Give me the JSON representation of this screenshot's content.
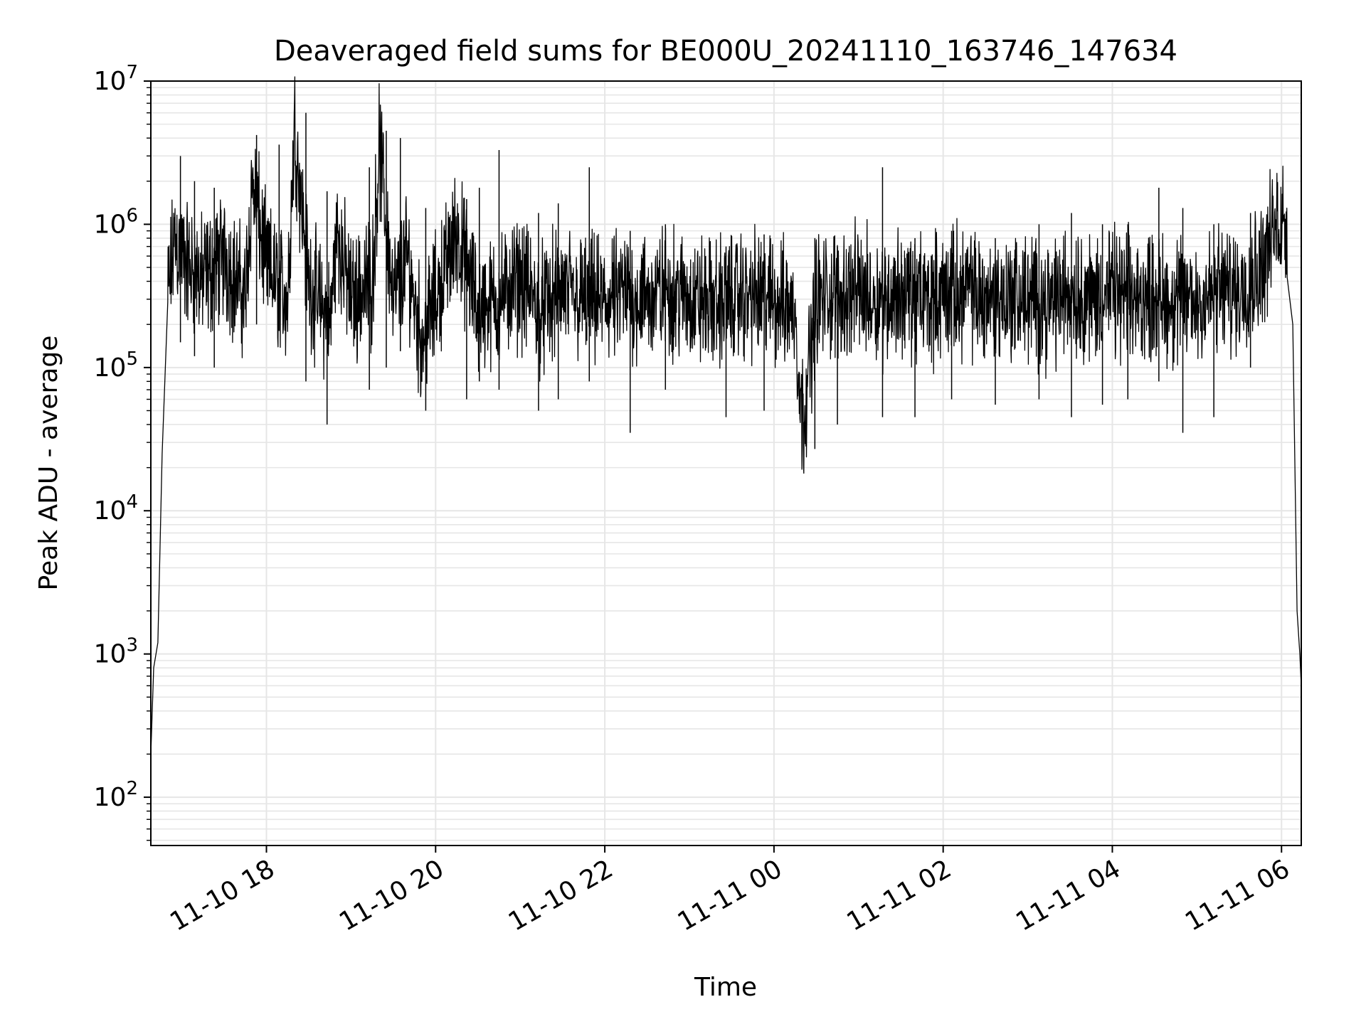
{
  "chart_data": {
    "type": "line",
    "title": "Deaveraged field sums for BE000U_20241110_163746_147634",
    "xlabel": "Time",
    "ylabel": "Peak ADU - average",
    "yscale": "log",
    "ylim": [
      46,
      10000000
    ],
    "xlim": [
      "2024-11-10 16:38",
      "2024-11-11 06:14"
    ],
    "grid": true,
    "line_color": "#000000",
    "grid_color": "#e6e6e6",
    "x_ticks": [
      {
        "value": "2024-11-10 18:00",
        "label": "11-10 18"
      },
      {
        "value": "2024-11-10 20:00",
        "label": "11-10 20"
      },
      {
        "value": "2024-11-10 22:00",
        "label": "11-10 22"
      },
      {
        "value": "2024-11-11 00:00",
        "label": "11-11 00"
      },
      {
        "value": "2024-11-11 02:00",
        "label": "11-11 02"
      },
      {
        "value": "2024-11-11 04:00",
        "label": "11-11 04"
      },
      {
        "value": "2024-11-11 06:00",
        "label": "11-11 06"
      }
    ],
    "y_ticks": [
      {
        "value": 100,
        "base": "10",
        "exp": "2"
      },
      {
        "value": 1000,
        "base": "10",
        "exp": "3"
      },
      {
        "value": 10000,
        "base": "10",
        "exp": "4"
      },
      {
        "value": 100000,
        "base": "10",
        "exp": "5"
      },
      {
        "value": 1000000,
        "base": "10",
        "exp": "6"
      },
      {
        "value": 10000000,
        "base": "10",
        "exp": "7"
      }
    ],
    "series": [
      {
        "x": [
          "2024-11-10 16:38",
          "2024-11-10 16:40",
          "2024-11-10 16:43",
          "2024-11-10 16:46",
          "2024-11-10 16:50",
          "2024-11-10 16:55",
          "2024-11-10 17:00",
          "2024-11-10 17:05",
          "2024-11-10 17:15",
          "2024-11-10 17:30",
          "2024-11-10 17:45",
          "2024-11-10 17:50",
          "2024-11-10 18:00",
          "2024-11-10 18:15",
          "2024-11-10 18:20",
          "2024-11-10 18:30",
          "2024-11-10 18:45",
          "2024-11-10 18:50",
          "2024-11-10 19:00",
          "2024-11-10 19:15",
          "2024-11-10 19:20",
          "2024-11-10 19:30",
          "2024-11-10 19:40",
          "2024-11-10 19:50",
          "2024-11-10 20:00",
          "2024-11-10 20:15",
          "2024-11-10 20:30",
          "2024-11-10 20:45",
          "2024-11-10 21:00",
          "2024-11-10 21:15",
          "2024-11-10 21:30",
          "2024-11-10 21:40",
          "2024-11-10 22:00",
          "2024-11-10 22:15",
          "2024-11-10 22:30",
          "2024-11-10 22:45",
          "2024-11-10 23:00",
          "2024-11-10 23:15",
          "2024-11-10 23:30",
          "2024-11-10 23:45",
          "2024-11-11 00:00",
          "2024-11-11 00:15",
          "2024-11-11 00:20",
          "2024-11-11 00:30",
          "2024-11-11 00:45",
          "2024-11-11 01:00",
          "2024-11-11 01:15",
          "2024-11-11 01:30",
          "2024-11-11 01:45",
          "2024-11-11 02:00",
          "2024-11-11 02:15",
          "2024-11-11 02:30",
          "2024-11-11 02:45",
          "2024-11-11 03:00",
          "2024-11-11 03:15",
          "2024-11-11 03:30",
          "2024-11-11 03:45",
          "2024-11-11 04:00",
          "2024-11-11 04:15",
          "2024-11-11 04:30",
          "2024-11-11 04:45",
          "2024-11-11 05:00",
          "2024-11-11 05:15",
          "2024-11-11 05:30",
          "2024-11-11 05:45",
          "2024-11-11 05:55",
          "2024-11-11 06:00",
          "2024-11-11 06:04",
          "2024-11-11 06:08",
          "2024-11-11 06:11",
          "2024-11-11 06:13",
          "2024-11-11 06:14"
        ],
        "y": [
          200,
          800,
          1200,
          25000,
          300000,
          800000,
          600000,
          500000,
          400000,
          600000,
          300000,
          2000000,
          500000,
          300000,
          5000000,
          400000,
          200000,
          900000,
          300000,
          400000,
          3500000,
          300000,
          600000,
          150000,
          300000,
          900000,
          250000,
          300000,
          400000,
          250000,
          350000,
          300000,
          280000,
          320000,
          300000,
          350000,
          300000,
          280000,
          300000,
          320000,
          300000,
          250000,
          40000,
          300000,
          320000,
          350000,
          300000,
          330000,
          300000,
          320000,
          350000,
          300000,
          310000,
          300000,
          280000,
          350000,
          300000,
          330000,
          300000,
          320000,
          280000,
          300000,
          330000,
          350000,
          500000,
          900000,
          1100000,
          1000000,
          200000,
          2000,
          1000,
          600
        ]
      }
    ],
    "spikes": [
      {
        "x": "2024-11-10 16:59",
        "high": 3000000,
        "low": 150000
      },
      {
        "x": "2024-11-10 17:09",
        "high": 2000000,
        "low": 120000
      },
      {
        "x": "2024-11-10 17:23",
        "high": 1800000,
        "low": 100000
      },
      {
        "x": "2024-11-10 17:53",
        "high": 4200000,
        "low": 200000
      },
      {
        "x": "2024-11-10 18:09",
        "high": 3600000,
        "low": 180000
      },
      {
        "x": "2024-11-10 18:28",
        "high": 6000000,
        "low": 80000
      },
      {
        "x": "2024-11-10 18:43",
        "high": 1700000,
        "low": 40000
      },
      {
        "x": "2024-11-10 19:13",
        "high": 2500000,
        "low": 70000
      },
      {
        "x": "2024-11-10 19:25",
        "high": 4500000,
        "low": 100000
      },
      {
        "x": "2024-11-10 19:35",
        "high": 4000000,
        "low": 130000
      },
      {
        "x": "2024-11-10 19:53",
        "high": 1300000,
        "low": 50000
      },
      {
        "x": "2024-11-10 20:22",
        "high": 1500000,
        "low": 60000
      },
      {
        "x": "2024-11-10 20:31",
        "high": 1800000,
        "low": 80000
      },
      {
        "x": "2024-11-10 20:45",
        "high": 3300000,
        "low": 70000
      },
      {
        "x": "2024-11-10 21:13",
        "high": 1200000,
        "low": 50000
      },
      {
        "x": "2024-11-10 21:27",
        "high": 1400000,
        "low": 60000
      },
      {
        "x": "2024-11-10 21:49",
        "high": 2500000,
        "low": 80000
      },
      {
        "x": "2024-11-10 22:18",
        "high": 900000,
        "low": 35000
      },
      {
        "x": "2024-11-10 22:43",
        "high": 1000000,
        "low": 70000
      },
      {
        "x": "2024-11-10 23:26",
        "high": 700000,
        "low": 45000
      },
      {
        "x": "2024-11-10 23:53",
        "high": 850000,
        "low": 50000
      },
      {
        "x": "2024-11-11 00:29",
        "high": 800000,
        "low": 27000
      },
      {
        "x": "2024-11-11 00:45",
        "high": 700000,
        "low": 40000
      },
      {
        "x": "2024-11-11 01:17",
        "high": 2500000,
        "low": 45000
      },
      {
        "x": "2024-11-11 01:40",
        "high": 800000,
        "low": 45000
      },
      {
        "x": "2024-11-11 02:06",
        "high": 900000,
        "low": 60000
      },
      {
        "x": "2024-11-11 02:37",
        "high": 800000,
        "low": 55000
      },
      {
        "x": "2024-11-11 03:08",
        "high": 1000000,
        "low": 60000
      },
      {
        "x": "2024-11-11 03:31",
        "high": 1200000,
        "low": 45000
      },
      {
        "x": "2024-11-11 03:53",
        "high": 1000000,
        "low": 55000
      },
      {
        "x": "2024-11-11 04:11",
        "high": 1000000,
        "low": 60000
      },
      {
        "x": "2024-11-11 04:33",
        "high": 1800000,
        "low": 80000
      },
      {
        "x": "2024-11-11 04:50",
        "high": 1300000,
        "low": 35000
      },
      {
        "x": "2024-11-11 05:12",
        "high": 1000000,
        "low": 45000
      },
      {
        "x": "2024-11-11 05:38",
        "high": 1200000,
        "low": 100000
      }
    ]
  }
}
